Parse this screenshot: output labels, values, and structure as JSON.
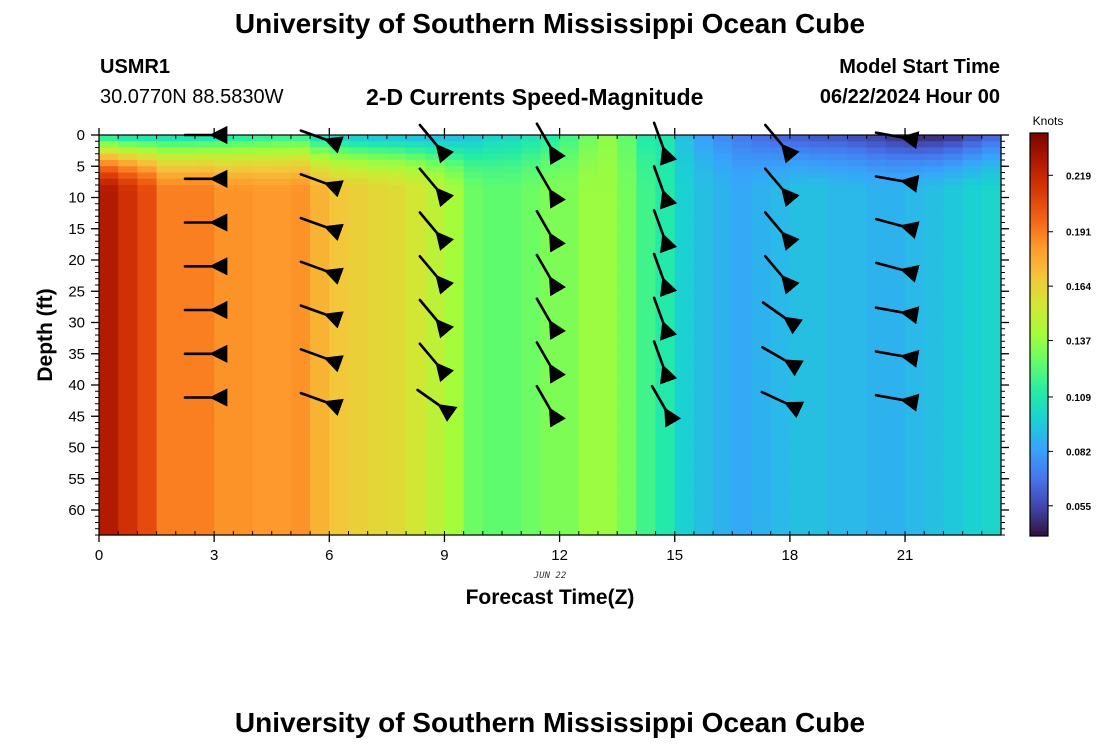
{
  "header": {
    "title": "University of Southern Mississippi Ocean Cube",
    "station_id": "USMR1",
    "station_location": "30.0770N  88.5830W",
    "subtitle": "2-D Currents Speed-Magnitude",
    "model_start_label": "Model Start Time",
    "model_start_value": "06/22/2024 Hour 00"
  },
  "footer": {
    "title": "University of Southern Mississippi Ocean Cube"
  },
  "colors": {
    "colormap": [
      "#30123b",
      "#4145ab",
      "#4675ed",
      "#39a2fc",
      "#1bcfd4",
      "#24eca6",
      "#61fc6c",
      "#a4fc3b",
      "#d1e834",
      "#f3c63a",
      "#fe9b2d",
      "#f36315",
      "#d93806",
      "#b11901",
      "#7a0402"
    ],
    "arrow": "#000000"
  },
  "chart_data": {
    "type": "heatmap",
    "title": "2-D Currents Speed-Magnitude",
    "xlabel": "Forecast Time(Z)",
    "ylabel": "Depth (ft)",
    "date_label": "JUN 22",
    "colorbar_label": "Knots",
    "xlim": [
      0,
      23.5
    ],
    "ylim": [
      0,
      64
    ],
    "y_inverted": true,
    "x_ticks": [
      0,
      3,
      6,
      9,
      12,
      15,
      18,
      21
    ],
    "x_tick_labels": [
      "0",
      "3",
      "6",
      "9",
      "12",
      "15",
      "18",
      "21"
    ],
    "y_ticks": [
      0,
      5,
      10,
      15,
      20,
      25,
      30,
      35,
      40,
      45,
      50,
      55,
      60
    ],
    "y_tick_labels": [
      "0",
      "5",
      "10",
      "15",
      "20",
      "25",
      "30",
      "35",
      "40",
      "45",
      "50",
      "55",
      "60"
    ],
    "colorbar": {
      "min": 0.04,
      "max": 0.24,
      "ticks": [
        0.219,
        0.191,
        0.164,
        0.137,
        0.109,
        0.082,
        0.055
      ],
      "tick_labels": [
        "0.219",
        "0.191",
        "0.164",
        "0.137",
        "0.109",
        "0.082",
        "0.055"
      ]
    },
    "columns": [
      {
        "t": 0.0,
        "surface": 0.105,
        "deep": 0.225
      },
      {
        "t": 0.5,
        "surface": 0.1,
        "deep": 0.215
      },
      {
        "t": 1.0,
        "surface": 0.1,
        "deep": 0.205
      },
      {
        "t": 1.5,
        "surface": 0.1,
        "deep": 0.19
      },
      {
        "t": 2.0,
        "surface": 0.1,
        "deep": 0.19
      },
      {
        "t": 2.5,
        "surface": 0.102,
        "deep": 0.19
      },
      {
        "t": 3.0,
        "surface": 0.105,
        "deep": 0.185
      },
      {
        "t": 3.5,
        "surface": 0.107,
        "deep": 0.185
      },
      {
        "t": 4.0,
        "surface": 0.11,
        "deep": 0.183
      },
      {
        "t": 4.5,
        "surface": 0.112,
        "deep": 0.183
      },
      {
        "t": 5.0,
        "surface": 0.112,
        "deep": 0.185
      },
      {
        "t": 5.5,
        "surface": 0.1,
        "deep": 0.175
      },
      {
        "t": 6.0,
        "surface": 0.095,
        "deep": 0.168
      },
      {
        "t": 6.5,
        "surface": 0.092,
        "deep": 0.165
      },
      {
        "t": 7.0,
        "surface": 0.09,
        "deep": 0.162
      },
      {
        "t": 7.5,
        "surface": 0.09,
        "deep": 0.16
      },
      {
        "t": 8.0,
        "surface": 0.088,
        "deep": 0.155
      },
      {
        "t": 8.5,
        "surface": 0.088,
        "deep": 0.148
      },
      {
        "t": 9.0,
        "surface": 0.088,
        "deep": 0.14
      },
      {
        "t": 9.5,
        "surface": 0.092,
        "deep": 0.128
      },
      {
        "t": 10.0,
        "surface": 0.098,
        "deep": 0.125
      },
      {
        "t": 10.5,
        "surface": 0.1,
        "deep": 0.125
      },
      {
        "t": 11.0,
        "surface": 0.105,
        "deep": 0.128
      },
      {
        "t": 11.5,
        "surface": 0.11,
        "deep": 0.132
      },
      {
        "t": 12.0,
        "surface": 0.118,
        "deep": 0.132
      },
      {
        "t": 12.5,
        "surface": 0.128,
        "deep": 0.138
      },
      {
        "t": 13.0,
        "surface": 0.135,
        "deep": 0.138
      },
      {
        "t": 13.5,
        "surface": 0.125,
        "deep": 0.13
      },
      {
        "t": 14.0,
        "surface": 0.11,
        "deep": 0.118
      },
      {
        "t": 14.5,
        "surface": 0.108,
        "deep": 0.11
      },
      {
        "t": 15.0,
        "surface": 0.092,
        "deep": 0.098
      },
      {
        "t": 15.5,
        "surface": 0.082,
        "deep": 0.092
      },
      {
        "t": 16.0,
        "surface": 0.075,
        "deep": 0.088
      },
      {
        "t": 16.5,
        "surface": 0.07,
        "deep": 0.085
      },
      {
        "t": 17.0,
        "surface": 0.065,
        "deep": 0.088
      },
      {
        "t": 17.5,
        "surface": 0.062,
        "deep": 0.09
      },
      {
        "t": 18.0,
        "surface": 0.06,
        "deep": 0.092
      },
      {
        "t": 18.5,
        "surface": 0.058,
        "deep": 0.092
      },
      {
        "t": 19.0,
        "surface": 0.058,
        "deep": 0.09
      },
      {
        "t": 19.5,
        "surface": 0.055,
        "deep": 0.09
      },
      {
        "t": 20.0,
        "surface": 0.052,
        "deep": 0.088
      },
      {
        "t": 20.5,
        "surface": 0.048,
        "deep": 0.088
      },
      {
        "t": 21.0,
        "surface": 0.045,
        "deep": 0.09
      },
      {
        "t": 21.5,
        "surface": 0.045,
        "deep": 0.092
      },
      {
        "t": 22.0,
        "surface": 0.048,
        "deep": 0.095
      },
      {
        "t": 22.5,
        "surface": 0.055,
        "deep": 0.098
      },
      {
        "t": 23.0,
        "surface": 0.062,
        "deep": 0.1
      }
    ],
    "vectors": {
      "times": [
        2.5,
        5.5,
        8.5,
        11.5,
        14.5,
        17.5,
        20.5
      ],
      "depths": [
        0,
        7,
        14,
        21,
        28,
        35,
        42
      ],
      "directions_deg": [
        [
          270,
          270,
          270,
          270,
          270,
          270,
          270
        ],
        [
          290,
          290,
          290,
          290,
          290,
          290,
          290
        ],
        [
          320,
          320,
          320,
          320,
          320,
          320,
          305
        ],
        [
          330,
          330,
          330,
          330,
          330,
          330,
          330
        ],
        [
          340,
          340,
          340,
          340,
          340,
          340,
          330
        ],
        [
          320,
          320,
          320,
          320,
          305,
          300,
          295
        ],
        [
          280,
          280,
          285,
          285,
          280,
          280,
          280
        ]
      ],
      "direction_convention": "toward, degrees clockwise from north, rows by time"
    }
  }
}
